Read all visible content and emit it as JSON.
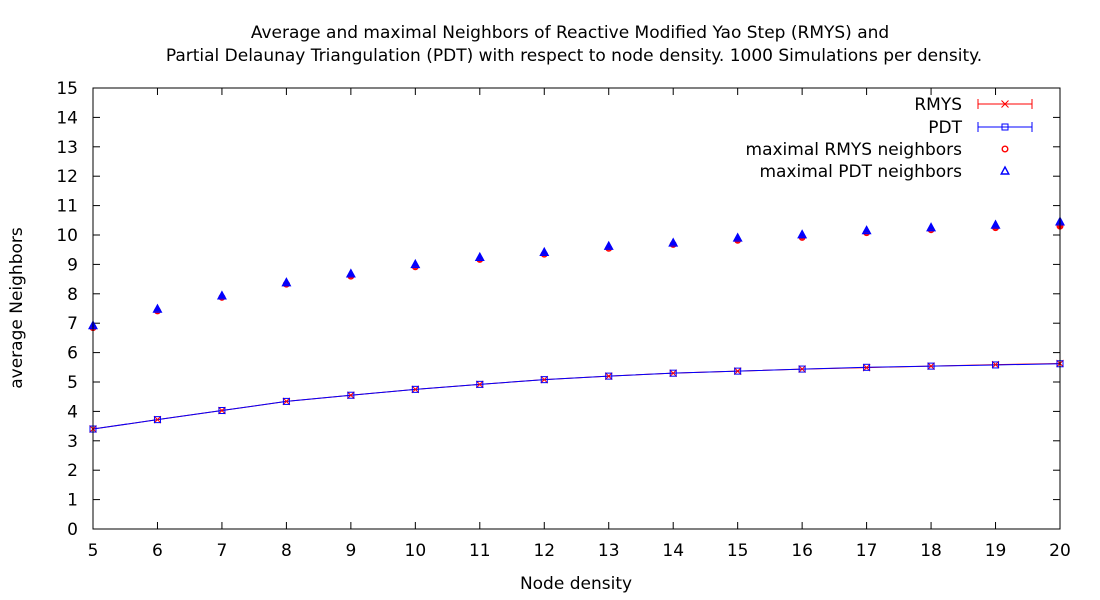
{
  "chart_data": {
    "type": "line",
    "title_lines": [
      "Average and maximal Neighbors of Reactive Modified Yao Step (RMYS) and",
      "Partial Delaunay Triangulation (PDT) with respect to node density. 1000 Simulations per density."
    ],
    "xlabel": "Node density",
    "ylabel": "average Neighbors",
    "xlim": [
      5,
      20
    ],
    "ylim": [
      0,
      15
    ],
    "x_ticks": [
      5,
      6,
      7,
      8,
      9,
      10,
      11,
      12,
      13,
      14,
      15,
      16,
      17,
      18,
      19,
      20
    ],
    "y_ticks": [
      0,
      1,
      2,
      3,
      4,
      5,
      6,
      7,
      8,
      9,
      10,
      11,
      12,
      13,
      14,
      15
    ],
    "grid": false,
    "legend_position": "top-right",
    "x": [
      5,
      6,
      7,
      8,
      9,
      10,
      11,
      12,
      13,
      14,
      15,
      16,
      17,
      18,
      19,
      20
    ],
    "series": [
      {
        "name": "RMYS",
        "style": "line-errorbars-cross",
        "color": "#ff0000",
        "values": [
          3.4,
          3.72,
          4.03,
          4.34,
          4.55,
          4.75,
          4.92,
          5.08,
          5.2,
          5.3,
          5.37,
          5.44,
          5.49,
          5.54,
          5.59,
          5.63
        ]
      },
      {
        "name": "PDT",
        "style": "line-errorbars-square",
        "color": "#0000ff",
        "values": [
          3.4,
          3.72,
          4.03,
          4.34,
          4.55,
          4.75,
          4.92,
          5.08,
          5.2,
          5.3,
          5.37,
          5.44,
          5.5,
          5.54,
          5.58,
          5.62
        ]
      },
      {
        "name": "maximal RMYS neighbors",
        "style": "points-circle",
        "color": "#ff0000",
        "values": [
          6.85,
          7.42,
          7.88,
          8.33,
          8.6,
          8.92,
          9.17,
          9.35,
          9.55,
          9.68,
          9.82,
          9.92,
          10.08,
          10.18,
          10.25,
          10.3
        ]
      },
      {
        "name": "maximal PDT neighbors",
        "style": "points-triangle",
        "color": "#0000ff",
        "values": [
          6.92,
          7.48,
          7.93,
          8.38,
          8.68,
          9.0,
          9.24,
          9.41,
          9.62,
          9.73,
          9.9,
          10.01,
          10.15,
          10.25,
          10.34,
          10.45
        ]
      }
    ]
  }
}
